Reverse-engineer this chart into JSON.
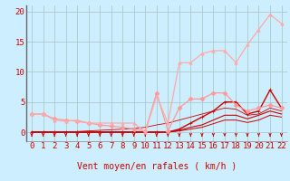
{
  "background_color": "#cceeff",
  "grid_color": "#aacccc",
  "xlim": [
    -0.5,
    22.5
  ],
  "ylim": [
    -1.5,
    21
  ],
  "yticks": [
    0,
    5,
    10,
    15,
    20
  ],
  "xticks": [
    0,
    1,
    2,
    3,
    4,
    5,
    6,
    7,
    8,
    9,
    10,
    11,
    12,
    13,
    14,
    15,
    16,
    17,
    18,
    19,
    20,
    21,
    22
  ],
  "xlabel": "Vent moyen/en rafales ( km/h )",
  "lines": [
    {
      "x": [
        0,
        1,
        2,
        3,
        4,
        5,
        6,
        7,
        8,
        9,
        10,
        11,
        12,
        13,
        14,
        15,
        16,
        17,
        18,
        19,
        20,
        21,
        22
      ],
      "y": [
        0,
        0,
        0,
        0,
        0,
        0,
        0,
        0,
        0,
        0,
        0,
        0,
        0,
        0.5,
        1.5,
        2.5,
        3.5,
        5,
        5,
        3,
        3.5,
        7,
        4
      ],
      "color": "#cc0000",
      "marker": "+",
      "markersize": 3.5,
      "linewidth": 1.0,
      "zorder": 5
    },
    {
      "x": [
        0,
        1,
        2,
        3,
        4,
        5,
        6,
        7,
        8,
        9,
        10,
        11,
        12,
        13,
        14,
        15,
        16,
        17,
        18,
        19,
        20,
        21,
        22
      ],
      "y": [
        0,
        0,
        0,
        0,
        0,
        0,
        0,
        0,
        0,
        0,
        0,
        0,
        0,
        0.3,
        0.8,
        1.2,
        2,
        2.8,
        2.8,
        2.2,
        2.8,
        3.5,
        3
      ],
      "color": "#cc0000",
      "marker": null,
      "markersize": 0,
      "linewidth": 0.8,
      "zorder": 4
    },
    {
      "x": [
        0,
        1,
        2,
        3,
        4,
        5,
        6,
        7,
        8,
        9,
        10,
        11,
        12,
        13,
        14,
        15,
        16,
        17,
        18,
        19,
        20,
        21,
        22
      ],
      "y": [
        0,
        0,
        0,
        0,
        0,
        0,
        0,
        0,
        0,
        0,
        0,
        0,
        0,
        0.2,
        0.5,
        0.8,
        1.4,
        2,
        2,
        1.6,
        2,
        2.8,
        2.5
      ],
      "color": "#cc0000",
      "marker": null,
      "markersize": 0,
      "linewidth": 0.7,
      "zorder": 4
    },
    {
      "x": [
        0,
        1,
        2,
        3,
        4,
        5,
        6,
        7,
        8,
        9,
        10,
        11,
        12,
        13,
        14,
        15,
        16,
        17,
        18,
        19,
        20,
        21,
        22
      ],
      "y": [
        0,
        0,
        0,
        0,
        0.1,
        0.2,
        0.3,
        0.4,
        0.5,
        0.6,
        0.8,
        1.2,
        1.5,
        2,
        2.5,
        3,
        3.5,
        4,
        3.8,
        2.8,
        3,
        4,
        3.5
      ],
      "color": "#cc0000",
      "marker": null,
      "markersize": 0,
      "linewidth": 0.6,
      "zorder": 3
    },
    {
      "x": [
        0,
        1,
        2,
        3,
        4,
        5,
        6,
        7,
        8,
        9,
        10,
        11,
        12,
        13,
        14,
        15,
        16,
        17,
        18,
        19,
        20,
        21,
        22
      ],
      "y": [
        3,
        3,
        2.2,
        2,
        1.8,
        1.5,
        1.2,
        1,
        0.8,
        0.5,
        0.2,
        6.5,
        0.2,
        4,
        5.5,
        5.5,
        6.5,
        6.5,
        4.5,
        3.5,
        4,
        4.5,
        4
      ],
      "color": "#ff9999",
      "marker": "D",
      "markersize": 2.5,
      "linewidth": 0.9,
      "zorder": 6
    },
    {
      "x": [
        0,
        1,
        2,
        3,
        4,
        5,
        6,
        7,
        8,
        9,
        10,
        11,
        12,
        13,
        14,
        15,
        16,
        17,
        18,
        19,
        20,
        21,
        22
      ],
      "y": [
        3,
        3,
        2,
        1.8,
        2,
        1.5,
        1.5,
        1.5,
        1.5,
        1.5,
        0,
        6,
        1.5,
        11.5,
        11.5,
        13,
        13.5,
        13.5,
        11.5,
        14.5,
        17,
        19.5,
        18
      ],
      "color": "#ffaaaa",
      "marker": "^",
      "markersize": 2.5,
      "linewidth": 0.9,
      "zorder": 6
    }
  ],
  "arrow_color": "#cc0000",
  "xlabel_color": "#cc0000",
  "xlabel_fontsize": 7,
  "tick_label_color": "#cc0000",
  "tick_fontsize": 6.5
}
